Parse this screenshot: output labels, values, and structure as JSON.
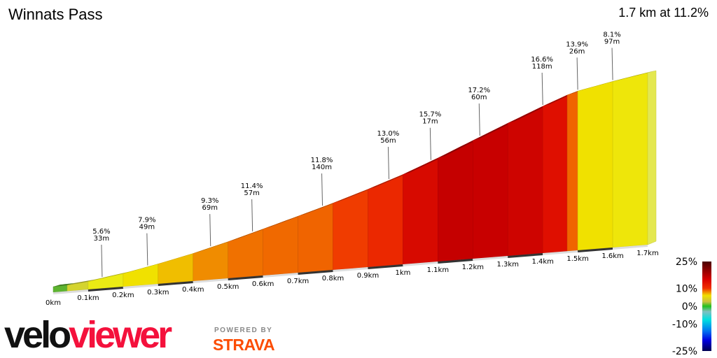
{
  "header": {
    "title": "Winnats Pass",
    "summary": "1.7 km at 11.2%"
  },
  "branding": {
    "logo_part1": "velo",
    "logo_part2": "viewer",
    "powered_by": "POWERED BY",
    "strava": "STRAVA"
  },
  "chart_data": {
    "type": "area",
    "title": "Winnats Pass",
    "xlabel": "",
    "ylabel": "",
    "xlim": [
      0,
      1.7
    ],
    "x_ticks": [
      "0km",
      "0.1km",
      "0.2km",
      "0.3km",
      "0.4km",
      "0.5km",
      "0.6km",
      "0.7km",
      "0.8km",
      "0.9km",
      "1km",
      "1.1km",
      "1.2km",
      "1.3km",
      "1.4km",
      "1.5km",
      "1.6km",
      "1.7km"
    ],
    "segments": [
      {
        "start_km": 0,
        "end_km": 0.04,
        "gradient": 1
      },
      {
        "start_km": 0.04,
        "end_km": 0.1,
        "gradient": 4
      },
      {
        "start_km": 0.1,
        "end_km": 0.2,
        "gradient": 6
      },
      {
        "start_km": 0.2,
        "end_km": 0.3,
        "gradient": 8
      },
      {
        "start_km": 0.3,
        "end_km": 0.4,
        "gradient": 9
      },
      {
        "start_km": 0.4,
        "end_km": 0.5,
        "gradient": 10.5
      },
      {
        "start_km": 0.5,
        "end_km": 0.6,
        "gradient": 11.5
      },
      {
        "start_km": 0.6,
        "end_km": 0.7,
        "gradient": 11.8
      },
      {
        "start_km": 0.7,
        "end_km": 0.8,
        "gradient": 12
      },
      {
        "start_km": 0.8,
        "end_km": 0.9,
        "gradient": 13
      },
      {
        "start_km": 0.9,
        "end_km": 1.0,
        "gradient": 14
      },
      {
        "start_km": 1.0,
        "end_km": 1.1,
        "gradient": 16
      },
      {
        "start_km": 1.1,
        "end_km": 1.2,
        "gradient": 17.2
      },
      {
        "start_km": 1.2,
        "end_km": 1.3,
        "gradient": 17
      },
      {
        "start_km": 1.3,
        "end_km": 1.4,
        "gradient": 16.6
      },
      {
        "start_km": 1.4,
        "end_km": 1.47,
        "gradient": 15.5
      },
      {
        "start_km": 1.47,
        "end_km": 1.5,
        "gradient": 12
      },
      {
        "start_km": 1.5,
        "end_km": 1.6,
        "gradient": 8
      },
      {
        "start_km": 1.6,
        "end_km": 1.7,
        "gradient": 7
      }
    ],
    "annotations": [
      {
        "km": 0.14,
        "gradient": "5.6%",
        "length": "33m"
      },
      {
        "km": 0.27,
        "gradient": "7.9%",
        "length": "49m"
      },
      {
        "km": 0.45,
        "gradient": "9.3%",
        "length": "69m"
      },
      {
        "km": 0.57,
        "gradient": "11.4%",
        "length": "57m"
      },
      {
        "km": 0.77,
        "gradient": "11.8%",
        "length": "140m"
      },
      {
        "km": 0.96,
        "gradient": "13.0%",
        "length": "56m"
      },
      {
        "km": 1.08,
        "gradient": "15.7%",
        "length": "17m"
      },
      {
        "km": 1.22,
        "gradient": "17.2%",
        "length": "60m"
      },
      {
        "km": 1.4,
        "gradient": "16.6%",
        "length": "118m"
      },
      {
        "km": 1.5,
        "gradient": "13.9%",
        "length": "26m"
      },
      {
        "km": 1.6,
        "gradient": "8.1%",
        "length": "97m"
      }
    ],
    "legend": {
      "labels": [
        "25%",
        "10%",
        "0%",
        "-10%",
        "-25%"
      ],
      "values": [
        25,
        10,
        0,
        -10,
        -25
      ],
      "colors": {
        "25": "#4a0000",
        "15": "#d80000",
        "10": "#f02000",
        "7": "#f0e000",
        "3": "#c8c040",
        "0": "#20c020",
        "-5": "#80c0c0",
        "-10": "#00e0e0",
        "-15": "#0080f0",
        "-20": "#0000e0",
        "-25": "#000050"
      }
    }
  }
}
